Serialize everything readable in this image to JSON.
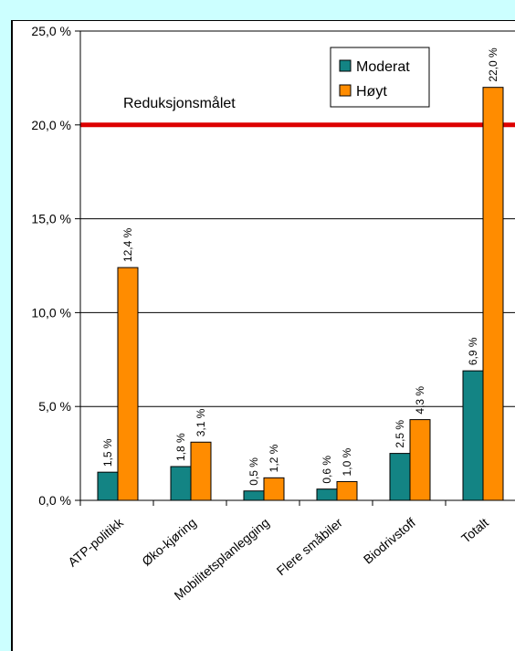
{
  "chart_data": {
    "type": "bar",
    "categories": [
      "ATP-politikk",
      "Øko-kjøring",
      "Mobilitetsplanlegging",
      "Flere småbiler",
      "Biodrivstoff",
      "Totalt"
    ],
    "series": [
      {
        "name": "Moderat",
        "values": [
          1.5,
          1.8,
          0.5,
          0.6,
          2.5,
          6.9
        ],
        "labels": [
          "1,5 %",
          "1,8 %",
          "0,5 %",
          "0,6 %",
          "2,5 %",
          "6,9 %"
        ],
        "color": "#138484"
      },
      {
        "name": "Høyt",
        "values": [
          12.4,
          3.1,
          1.2,
          1.0,
          4.3,
          22.0
        ],
        "labels": [
          "12,4 %",
          "3,1 %",
          "1,2 %",
          "1,0 %",
          "4,3 %",
          "22,0 %"
        ],
        "color": "#ff8c00"
      }
    ],
    "yticks": [
      0,
      5,
      10,
      15,
      20,
      25
    ],
    "ytick_labels": [
      "0,0 %",
      "5,0 %",
      "10,0 %",
      "15,0 %",
      "20,0 %",
      "25,0 %"
    ],
    "ylim": [
      0,
      25
    ],
    "grid": true,
    "legend": "top-right",
    "reference_line": {
      "value": 20,
      "label": "Reduksjonsmålet",
      "color": "#dd0000"
    }
  },
  "colors": {
    "background": "#ccffff",
    "plot": "#ffffff"
  }
}
